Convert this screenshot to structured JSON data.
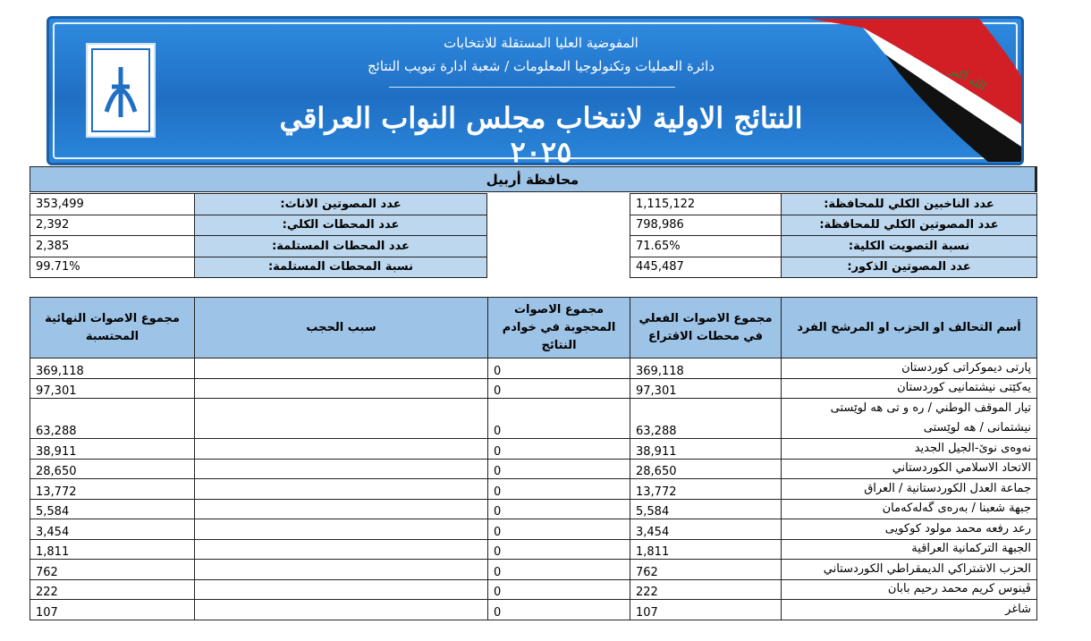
{
  "banner": {
    "line1": "المفوضية العليا المستقلة للانتخابات",
    "line2": "دائرة العمليات وتكنولوجيا المعلومات / شعبة ادارة تبويب النتائج",
    "title": "النتائج الاولية لانتخاب مجلس النواب العراقي ٢٠٢٥",
    "flag_text": "الله أكبر"
  },
  "province": "محافظة أربيل",
  "summary": {
    "right": [
      [
        "عدد الناخبين الكلي للمحافظة:",
        "1,115,122"
      ],
      [
        "عدد المصوتين الكلي للمحافظة:",
        "798,986"
      ],
      [
        "نسبة التصويت الكلية:",
        "71.65%"
      ],
      [
        "عدد المصوتين الذكور:",
        "445,487"
      ]
    ],
    "left": [
      [
        "عدد المصوتين الاناث:",
        "353,499"
      ],
      [
        "عدد المحطات الكلي:",
        "2,392"
      ],
      [
        "عدد المحطات المستلمة:",
        "2,385"
      ],
      [
        "نسبة المحطات المستلمة:",
        "99.71%"
      ]
    ]
  },
  "table": {
    "headers": [
      "أسم التحالف او الحزب او المرشح الفرد",
      "مجموع الاصوات الفعلي في محطات الاقتراع",
      "مجموع الاصوات المحجوبة في خوادم النتائج",
      "سبب الحجب",
      "مجموع الاصوات النهائية المحتسبة"
    ],
    "rows": [
      [
        "پارتی دیموکراتی کوردستان",
        "369,118",
        "0",
        "369,118"
      ],
      [
        "یەکێتی نیشتمانیی کوردستان",
        "97,301",
        "0",
        "97,301"
      ],
      [
        "تيار الموقف الوطني / رە و تی هە لوێستی نیشتمانی / هە لوێستی",
        "63,288",
        "0",
        "63,288"
      ],
      [
        "نەوەی نوێ-الجيل الجديد",
        "38,911",
        "0",
        "38,911"
      ],
      [
        "الاتحاد الاسلامي الكوردستاني",
        "28,650",
        "0",
        "28,650"
      ],
      [
        "جماعة العدل الكوردستانية / العراق",
        "13,772",
        "0",
        "13,772"
      ],
      [
        "جبهة شعبنا / بەرەی گەلەکەمان",
        "5,584",
        "0",
        "5,584"
      ],
      [
        "رعد رفعه محمد مولود كوكويى",
        "3,454",
        "0",
        "3,454"
      ],
      [
        "الجبهة التركمانية العراقية",
        "1,811",
        "0",
        "1,811"
      ],
      [
        "الحزب الاشتراكي الديمقراطي الكوردستاني",
        "762",
        "0",
        "762"
      ],
      [
        "ڤينوس كريم محمد رحيم بابان",
        "222",
        "0",
        "222"
      ],
      [
        "شاغر",
        "107",
        "0",
        "107"
      ]
    ]
  }
}
